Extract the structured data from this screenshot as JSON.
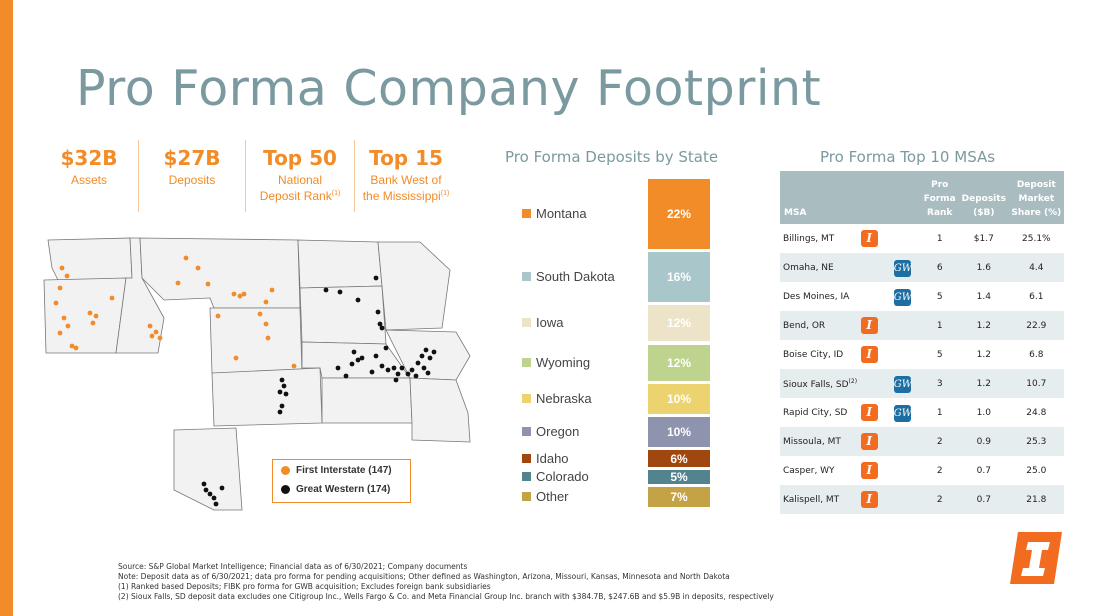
{
  "title": "Pro Forma Company Footprint",
  "kpis": [
    {
      "big": "$32B",
      "small": "Assets",
      "sup": ""
    },
    {
      "big": "$27B",
      "small": "Deposits",
      "sup": ""
    },
    {
      "big": "Top 50",
      "small1": "National",
      "small2": "Deposit Rank",
      "sup": "(1)"
    },
    {
      "big": "Top 15",
      "small1": "Bank West of",
      "small2": "the Mississippi",
      "sup": "(1)"
    }
  ],
  "map_legend": [
    {
      "label": "First Interstate (147)",
      "color": "#F28C28"
    },
    {
      "label": "Great Western (174)",
      "color": "#111111"
    }
  ],
  "deposits_title": "Pro Forma Deposits by State",
  "chart_data": {
    "type": "bar",
    "title": "Pro Forma Deposits by State",
    "stacked": true,
    "categories": [
      "Montana",
      "South Dakota",
      "Iowa",
      "Wyoming",
      "Nebraska",
      "Oregon",
      "Idaho",
      "Colorado",
      "Other"
    ],
    "values": [
      22,
      16,
      12,
      12,
      10,
      10,
      6,
      5,
      7
    ],
    "value_labels": [
      "22%",
      "16%",
      "12%",
      "12%",
      "10%",
      "10%",
      "6%",
      "5%",
      "7%"
    ],
    "colors": [
      "#F28C28",
      "#A9C6CB",
      "#EDE3C8",
      "#BDD38E",
      "#EDD36F",
      "#8E93AE",
      "#A0470F",
      "#53838F",
      "#C4A347"
    ]
  },
  "msa_title": "Pro Forma Top 10 MSAs",
  "msa_headers": {
    "msa": "MSA",
    "rank": [
      "Pro",
      "Forma",
      "Rank"
    ],
    "deposits": [
      "Deposits",
      "($B)"
    ],
    "share": [
      "Deposit",
      "Market",
      "Share (%)"
    ]
  },
  "msa_rows": [
    {
      "name": "Billings, MT",
      "sup": "",
      "logos": [
        "fi"
      ],
      "rank": "1",
      "deposits": "$1.7",
      "share": "25.1%"
    },
    {
      "name": "Omaha, NE",
      "sup": "",
      "logos": [
        "gw"
      ],
      "rank": "6",
      "deposits": "1.6",
      "share": "4.4"
    },
    {
      "name": "Des Moines, IA",
      "sup": "",
      "logos": [
        "gw"
      ],
      "rank": "5",
      "deposits": "1.4",
      "share": "6.1"
    },
    {
      "name": "Bend, OR",
      "sup": "",
      "logos": [
        "fi"
      ],
      "rank": "1",
      "deposits": "1.2",
      "share": "22.9"
    },
    {
      "name": "Boise City, ID",
      "sup": "",
      "logos": [
        "fi"
      ],
      "rank": "5",
      "deposits": "1.2",
      "share": "6.8"
    },
    {
      "name": "Sioux Falls, SD",
      "sup": "(2)",
      "logos": [
        "gw"
      ],
      "rank": "3",
      "deposits": "1.2",
      "share": "10.7"
    },
    {
      "name": "Rapid City, SD",
      "sup": "",
      "logos": [
        "fi",
        "gw"
      ],
      "rank": "1",
      "deposits": "1.0",
      "share": "24.8"
    },
    {
      "name": "Missoula, MT",
      "sup": "",
      "logos": [
        "fi"
      ],
      "rank": "2",
      "deposits": "0.9",
      "share": "25.3"
    },
    {
      "name": "Casper, WY",
      "sup": "",
      "logos": [
        "fi"
      ],
      "rank": "2",
      "deposits": "0.7",
      "share": "25.0"
    },
    {
      "name": "Kalispell, MT",
      "sup": "",
      "logos": [
        "fi"
      ],
      "rank": "2",
      "deposits": "0.7",
      "share": "21.8"
    }
  ],
  "logo_glyphs": {
    "fi": "I",
    "gw": "GW"
  },
  "footnotes": [
    "Source: S&P Global Market Intelligence; Financial data as of 6/30/2021; Company documents",
    "Note: Deposit data as of 6/30/2021; data pro forma for pending acquisitions; Other defined as Washington, Arizona, Missouri, Kansas, Minnesota and North Dakota",
    "(1)    Ranked based Deposits; FIBK pro forma for GWB acquisition; Excludes foreign bank subsidiaries",
    "(2)    Sioux Falls, SD deposit data excludes one Citigroup Inc., Wells Fargo & Co. and Meta Financial Group Inc. branch with $384.7B, $247.6B and $5.9B in deposits, respectively"
  ]
}
